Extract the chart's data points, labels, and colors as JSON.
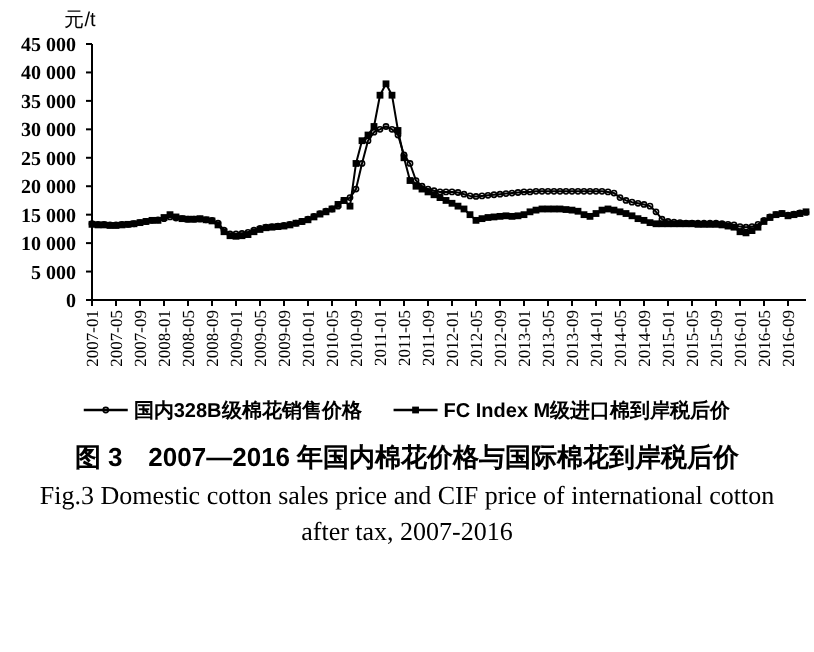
{
  "chart_data": {
    "type": "line",
    "title": "图 3　2007—2016 年国内棉花价格与国际棉花到岸税后价",
    "subtitle": "Fig.3 Domestic cotton sales price and CIF price of international cotton after tax, 2007-2016",
    "ylabel": "元/t",
    "x": [
      "2007-01",
      "2007-02",
      "2007-03",
      "2007-04",
      "2007-05",
      "2007-06",
      "2007-07",
      "2007-08",
      "2007-09",
      "2007-10",
      "2007-11",
      "2007-12",
      "2008-01",
      "2008-02",
      "2008-03",
      "2008-04",
      "2008-05",
      "2008-06",
      "2008-07",
      "2008-08",
      "2008-09",
      "2008-10",
      "2008-11",
      "2008-12",
      "2009-01",
      "2009-02",
      "2009-03",
      "2009-04",
      "2009-05",
      "2009-06",
      "2009-07",
      "2009-08",
      "2009-09",
      "2009-10",
      "2009-11",
      "2009-12",
      "2010-01",
      "2010-02",
      "2010-03",
      "2010-04",
      "2010-05",
      "2010-06",
      "2010-07",
      "2010-08",
      "2010-09",
      "2010-10",
      "2010-11",
      "2010-12",
      "2011-01",
      "2011-02",
      "2011-03",
      "2011-04",
      "2011-05",
      "2011-06",
      "2011-07",
      "2011-08",
      "2011-09",
      "2011-10",
      "2011-11",
      "2011-12",
      "2012-01",
      "2012-02",
      "2012-03",
      "2012-04",
      "2012-05",
      "2012-06",
      "2012-07",
      "2012-08",
      "2012-09",
      "2012-10",
      "2012-11",
      "2012-12",
      "2013-01",
      "2013-02",
      "2013-03",
      "2013-04",
      "2013-05",
      "2013-06",
      "2013-07",
      "2013-08",
      "2013-09",
      "2013-10",
      "2013-11",
      "2013-12",
      "2014-01",
      "2014-02",
      "2014-03",
      "2014-04",
      "2014-05",
      "2014-06",
      "2014-07",
      "2014-08",
      "2014-09",
      "2014-10",
      "2014-11",
      "2014-12",
      "2015-01",
      "2015-02",
      "2015-03",
      "2015-04",
      "2015-05",
      "2015-06",
      "2015-07",
      "2015-08",
      "2015-09",
      "2015-10",
      "2015-11",
      "2015-12",
      "2016-01",
      "2016-02",
      "2016-03",
      "2016-04",
      "2016-05",
      "2016-06",
      "2016-07",
      "2016-08",
      "2016-09",
      "2016-10",
      "2016-11",
      "2016-12"
    ],
    "series": [
      {
        "name": "国内328B级棉花销售价格",
        "color": "#000000",
        "marker": "circle",
        "values": [
          13400,
          13300,
          13300,
          13200,
          13200,
          13300,
          13300,
          13400,
          13600,
          13800,
          14000,
          14100,
          14300,
          14600,
          14400,
          14300,
          14200,
          14200,
          14200,
          14100,
          14000,
          13500,
          12300,
          11600,
          11600,
          11700,
          11900,
          12300,
          12600,
          12800,
          12900,
          13000,
          13100,
          13300,
          13500,
          13800,
          14200,
          14700,
          15200,
          15600,
          16000,
          16500,
          17500,
          18000,
          19500,
          24000,
          28000,
          29500,
          30000,
          30500,
          30000,
          29000,
          25500,
          24000,
          21000,
          20000,
          19500,
          19200,
          19000,
          19000,
          19000,
          18900,
          18600,
          18300,
          18200,
          18300,
          18400,
          18500,
          18600,
          18700,
          18800,
          18900,
          19000,
          19000,
          19100,
          19100,
          19100,
          19100,
          19100,
          19100,
          19100,
          19100,
          19100,
          19100,
          19100,
          19100,
          19000,
          18800,
          18000,
          17500,
          17200,
          17000,
          16800,
          16500,
          15500,
          14200,
          13800,
          13700,
          13600,
          13500,
          13500,
          13500,
          13500,
          13500,
          13500,
          13400,
          13300,
          13200,
          12900,
          12800,
          12900,
          13300,
          14000,
          14600,
          15000,
          15200,
          14900,
          15100,
          15300,
          15400
        ]
      },
      {
        "name": "FC Index M级进口棉到岸税后价",
        "color": "#000000",
        "marker": "square",
        "values": [
          13300,
          13200,
          13200,
          13100,
          13100,
          13200,
          13300,
          13400,
          13600,
          13800,
          14000,
          14000,
          14500,
          15000,
          14600,
          14300,
          14200,
          14200,
          14300,
          14100,
          13900,
          13200,
          12000,
          11300,
          11200,
          11300,
          11500,
          12000,
          12400,
          12700,
          12800,
          12900,
          13000,
          13200,
          13500,
          13800,
          14100,
          14600,
          15100,
          15500,
          16000,
          16800,
          17500,
          16500,
          24000,
          28000,
          29000,
          30500,
          36000,
          38000,
          36000,
          29800,
          25000,
          21000,
          20000,
          19500,
          19000,
          18500,
          18000,
          17500,
          17000,
          16500,
          16000,
          15000,
          14000,
          14300,
          14500,
          14600,
          14700,
          14800,
          14700,
          14800,
          15000,
          15500,
          15800,
          16000,
          16000,
          16000,
          16000,
          15900,
          15800,
          15600,
          15000,
          14700,
          15200,
          15800,
          16000,
          15800,
          15500,
          15200,
          14800,
          14300,
          14000,
          13600,
          13400,
          13400,
          13400,
          13400,
          13400,
          13400,
          13400,
          13300,
          13300,
          13300,
          13300,
          13200,
          13000,
          12800,
          12000,
          11800,
          12200,
          12800,
          13800,
          14500,
          15000,
          15200,
          14800,
          15000,
          15200,
          15500
        ]
      }
    ],
    "xlim": [
      "2007-01",
      "2016-12"
    ],
    "xticks": [
      "2007-01",
      "2007-05",
      "2007-09",
      "2008-01",
      "2008-05",
      "2008-09",
      "2009-01",
      "2009-05",
      "2009-09",
      "2010-01",
      "2010-05",
      "2010-09",
      "2011-01",
      "2011-05",
      "2011-09",
      "2012-01",
      "2012-05",
      "2012-09",
      "2013-01",
      "2013-05",
      "2013-09",
      "2014-01",
      "2014-05",
      "2014-09",
      "2015-01",
      "2015-05",
      "2015-09",
      "2016-01",
      "2016-05",
      "2016-09"
    ],
    "ylim": [
      0,
      45000
    ],
    "yticks": [
      0,
      {
        "value": 5000,
        "label": "5 000"
      },
      {
        "value": 10000,
        "label": "10 000"
      },
      {
        "value": 15000,
        "label": "15 000"
      },
      {
        "value": 20000,
        "label": "20 000"
      },
      {
        "value": 25000,
        "label": "25 000"
      },
      {
        "value": 30000,
        "label": "30 000"
      },
      {
        "value": 35000,
        "label": "35 000"
      },
      {
        "value": 40000,
        "label": "40 000"
      },
      {
        "value": 45000,
        "label": "45 000"
      }
    ],
    "legend": "bottom",
    "line_style": "solid"
  }
}
